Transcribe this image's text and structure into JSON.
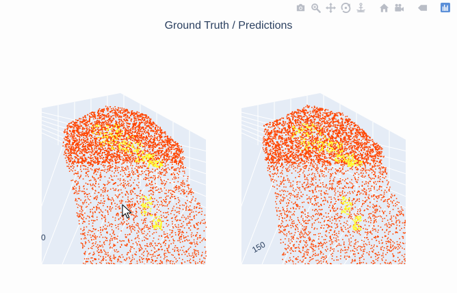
{
  "title": "Ground Truth / Predictions",
  "modebar": {
    "buttons": [
      {
        "name": "download-plot-button",
        "icon": "camera-icon"
      },
      {
        "name": "zoom-button",
        "icon": "zoom-icon"
      },
      {
        "name": "pan-button",
        "icon": "pan-icon"
      },
      {
        "name": "orbit-rotation-button",
        "icon": "orbit-icon"
      },
      {
        "name": "turntable-rotation-button",
        "icon": "turntable-icon"
      },
      {
        "name": "reset-camera-button",
        "icon": "home-icon"
      },
      {
        "name": "last-save-camera-button",
        "icon": "camera-video-icon"
      },
      {
        "name": "hover-toggle-button",
        "icon": "tag-icon"
      },
      {
        "name": "plotly-logo-button",
        "icon": "plotly-logo-icon"
      }
    ]
  },
  "scenes": [
    {
      "name": "ground-truth",
      "tick_label": "0"
    },
    {
      "name": "predictions",
      "tick_label": "150"
    }
  ],
  "colors": {
    "background": "#fdfdfd",
    "pane": "#e5ecf6",
    "grid": "#ffffff",
    "points_main": "#ff4500",
    "points_highlight": "#ffff33",
    "title": "#2a3f5f",
    "modebar": "#b9bdc6",
    "modebar_active": "#5b8fd8"
  }
}
